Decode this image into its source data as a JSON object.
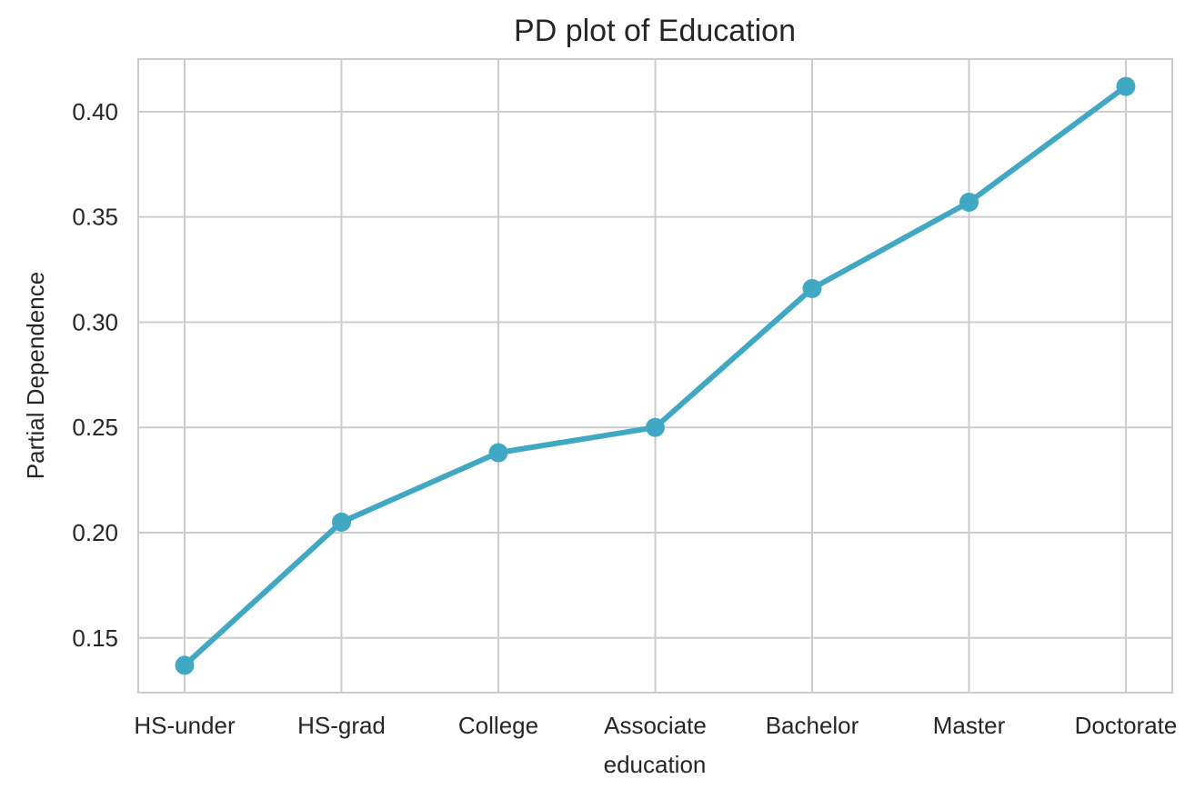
{
  "chart_data": {
    "type": "line",
    "title": "PD plot of Education",
    "xlabel": "education",
    "ylabel": "Partial Dependence",
    "categories": [
      "HS-under",
      "HS-grad",
      "College",
      "Associate",
      "Bachelor",
      "Master",
      "Doctorate"
    ],
    "series": [
      {
        "values": [
          0.137,
          0.205,
          0.238,
          0.25,
          0.316,
          0.357,
          0.412
        ]
      }
    ],
    "y_ticks": [
      "0.15",
      "0.20",
      "0.25",
      "0.30",
      "0.35",
      "0.40"
    ],
    "ylim": [
      0.124,
      0.425
    ],
    "grid": true,
    "legend": "none",
    "colors": {
      "line": "#41a8c4",
      "grid": "#cccccc",
      "text": "#262626"
    }
  }
}
